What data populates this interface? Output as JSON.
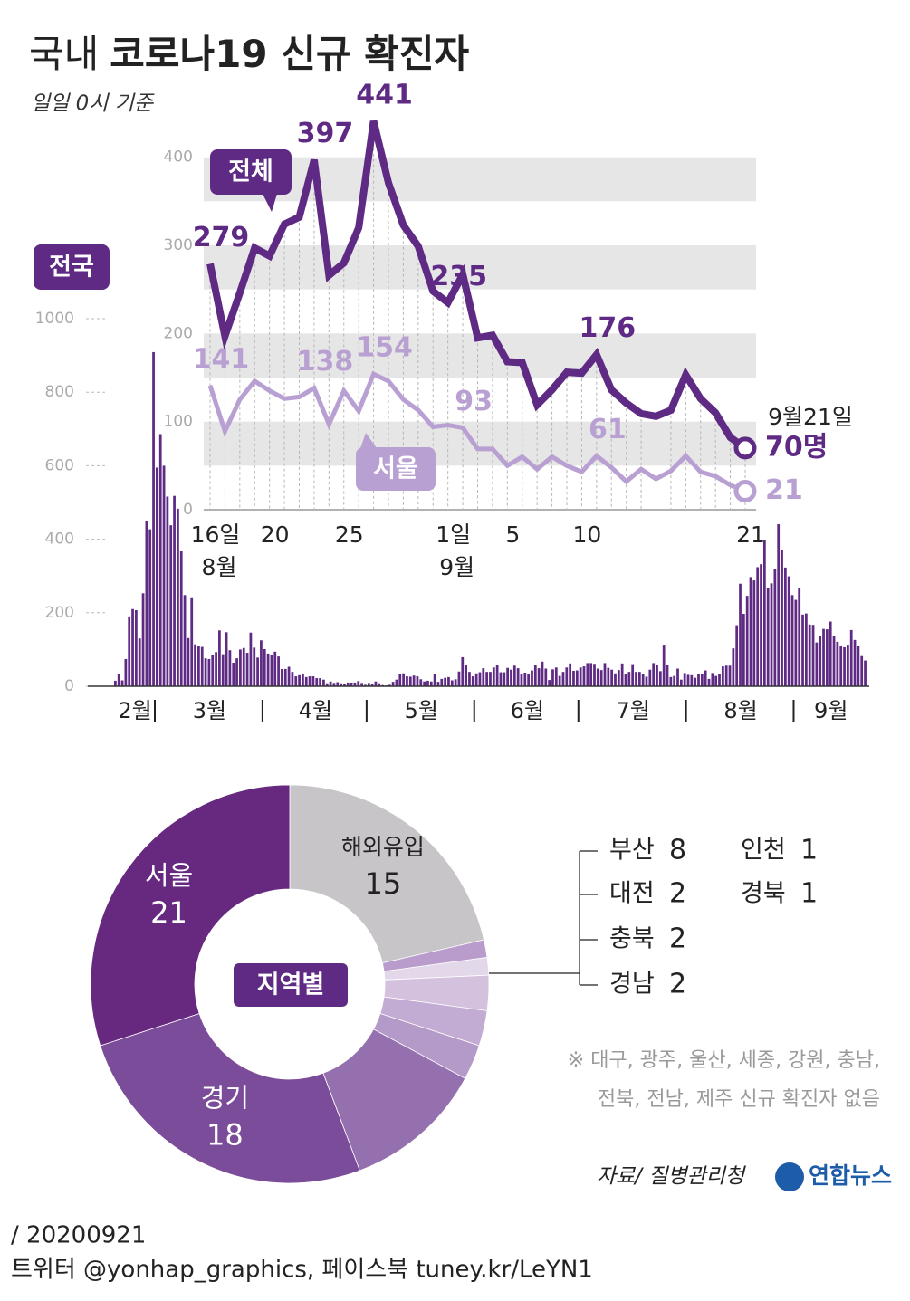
{
  "header": {
    "title_prefix": "국내",
    "title": "코로나19 신규 확진자",
    "subtitle": "일일 0시 기준"
  },
  "chart_data": [
    {
      "type": "bar",
      "name": "전국",
      "color": "#5e2a84",
      "categories": [
        "2월",
        null,
        null,
        null,
        null,
        null,
        null,
        null,
        null,
        null,
        null,
        null,
        "3월",
        null,
        null,
        null,
        null,
        null,
        null,
        null,
        null,
        null,
        null,
        null,
        null,
        null,
        null,
        null,
        null,
        null,
        null,
        null,
        null,
        null,
        null,
        null,
        null,
        null,
        null,
        null,
        null,
        null,
        null,
        "4월",
        null,
        null,
        null,
        null,
        null,
        null,
        null,
        null,
        null,
        null,
        null,
        null,
        null,
        null,
        null,
        null,
        null,
        null,
        null,
        null,
        null,
        null,
        null,
        null,
        null,
        null,
        null,
        null,
        null,
        "5월",
        null,
        null,
        null,
        null,
        null,
        null,
        null,
        null,
        null,
        null,
        null,
        null,
        null,
        null,
        null,
        null,
        null,
        null,
        null,
        null,
        null,
        null,
        null,
        null,
        null,
        null,
        null,
        null,
        null,
        null,
        "6월",
        null,
        null,
        null,
        null,
        null,
        null,
        null,
        null,
        null,
        null,
        null,
        null,
        null,
        null,
        null,
        null,
        null,
        null,
        null,
        null,
        null,
        null,
        null,
        null,
        null,
        null,
        null,
        null,
        null,
        "7월",
        null,
        null,
        null,
        null,
        null,
        null,
        null,
        null,
        null,
        null,
        null,
        null,
        null,
        null,
        null,
        null,
        null,
        null,
        null,
        null,
        null,
        null,
        null,
        null,
        null,
        null,
        null,
        null,
        null,
        null,
        "8월",
        null,
        null,
        null,
        null,
        null,
        null,
        null,
        null,
        null,
        null,
        null,
        null,
        null,
        null,
        null,
        null,
        null,
        null,
        null,
        null,
        null,
        null,
        null,
        null,
        null,
        null,
        null,
        null,
        null,
        null,
        "9월",
        null,
        null,
        null,
        null,
        null,
        null,
        null,
        null,
        null,
        null,
        null,
        null,
        null,
        null,
        null,
        null,
        null,
        null,
        null,
        null
      ],
      "values": [
        15,
        34,
        16,
        74,
        190,
        210,
        207,
        130,
        253,
        449,
        427,
        909,
        595,
        686,
        600,
        516,
        438,
        518,
        483,
        367,
        248,
        131,
        242,
        114,
        110,
        107,
        76,
        74,
        84,
        93,
        152,
        87,
        147,
        98,
        64,
        76,
        100,
        104,
        91,
        146,
        105,
        78,
        125,
        101,
        89,
        86,
        94,
        81,
        47,
        47,
        53,
        39,
        27,
        30,
        32,
        25,
        27,
        27,
        22,
        22,
        18,
        8,
        13,
        9,
        11,
        8,
        6,
        10,
        10,
        10,
        14,
        9,
        4,
        9,
        6,
        13,
        8,
        3,
        2,
        4,
        12,
        18,
        34,
        35,
        27,
        26,
        29,
        27,
        19,
        13,
        15,
        13,
        32,
        12,
        20,
        23,
        25,
        16,
        19,
        40,
        79,
        58,
        39,
        27,
        35,
        38,
        49,
        39,
        39,
        51,
        57,
        38,
        38,
        50,
        45,
        56,
        49,
        34,
        37,
        34,
        43,
        59,
        49,
        67,
        48,
        17,
        46,
        51,
        28,
        39,
        51,
        62,
        42,
        43,
        51,
        54,
        63,
        63,
        61,
        48,
        44,
        63,
        50,
        45,
        35,
        44,
        62,
        33,
        39,
        60,
        39,
        39,
        34,
        26,
        45,
        63,
        59,
        41,
        113,
        58,
        25,
        28,
        48,
        18,
        36,
        31,
        30,
        23,
        34,
        33,
        43,
        20,
        36,
        28,
        34,
        54,
        56,
        56,
        103,
        166,
        279,
        197,
        246,
        297,
        288,
        324,
        332,
        397,
        266,
        280,
        320,
        441,
        371,
        323,
        299,
        248,
        235,
        267,
        195,
        198,
        168,
        167,
        119,
        136,
        156,
        155,
        176,
        136,
        121,
        109,
        106,
        113,
        153,
        126,
        110,
        82,
        70
      ],
      "ylim": [
        0,
        1000
      ],
      "yticks": [
        0,
        200,
        400,
        600,
        800,
        1000
      ]
    },
    {
      "type": "line",
      "categories": [
        "16일",
        null,
        null,
        null,
        "20",
        null,
        null,
        null,
        null,
        "25",
        null,
        null,
        null,
        null,
        null,
        null,
        "1일",
        null,
        null,
        null,
        "5",
        null,
        null,
        null,
        null,
        "10",
        null,
        null,
        null,
        null,
        null,
        null,
        null,
        null,
        null,
        null,
        "21"
      ],
      "month_labels": [
        "8월",
        null,
        null,
        null,
        null,
        null,
        null,
        null,
        null,
        null,
        null,
        null,
        null,
        null,
        null,
        null,
        "9월",
        null,
        null,
        null,
        null,
        null,
        null,
        null,
        null,
        null,
        null,
        null,
        null,
        null,
        null,
        null,
        null,
        null,
        null,
        null,
        null
      ],
      "series": [
        {
          "name": "전체",
          "color": "#5e2a84",
          "values": [
            279,
            197,
            246,
            297,
            288,
            324,
            332,
            397,
            266,
            280,
            320,
            441,
            371,
            323,
            299,
            248,
            235,
            267,
            195,
            198,
            168,
            167,
            119,
            136,
            156,
            155,
            176,
            136,
            121,
            109,
            106,
            113,
            153,
            126,
            110,
            82,
            70
          ],
          "value_labels": [
            "279",
            null,
            null,
            null,
            null,
            null,
            null,
            "397",
            null,
            null,
            null,
            "441",
            null,
            null,
            null,
            null,
            "235",
            null,
            null,
            null,
            null,
            null,
            null,
            null,
            null,
            null,
            "176",
            null,
            null,
            null,
            null,
            null,
            null,
            null,
            null,
            null,
            "70명"
          ]
        },
        {
          "name": "서울",
          "color": "#b9a0d2",
          "values": [
            141,
            89,
            125,
            146,
            135,
            126,
            128,
            138,
            97,
            135,
            112,
            154,
            146,
            125,
            113,
            94,
            96,
            93,
            69,
            69,
            50,
            60,
            46,
            60,
            50,
            43,
            61,
            48,
            32,
            46,
            35,
            44,
            61,
            43,
            38,
            28,
            21
          ],
          "value_labels": [
            "141",
            null,
            null,
            null,
            null,
            null,
            null,
            "138",
            null,
            null,
            null,
            "154",
            null,
            null,
            null,
            null,
            null,
            "93",
            null,
            null,
            null,
            null,
            null,
            null,
            null,
            null,
            "61",
            null,
            null,
            null,
            null,
            null,
            null,
            null,
            null,
            null,
            "21"
          ]
        }
      ],
      "ylim": [
        0,
        450
      ],
      "yticks": [
        0,
        100,
        200,
        300,
        400
      ],
      "grid": "bands",
      "annotation": "9월21일"
    },
    {
      "type": "pie",
      "title": "지역별",
      "categories": [
        "해외유입",
        "경북",
        "인천",
        "경남",
        "충북",
        "대전",
        "부산",
        "경기",
        "서울"
      ],
      "values": [
        15,
        1,
        1,
        2,
        2,
        2,
        8,
        18,
        21
      ],
      "colors": [
        "#c8c5c8",
        "#b99ccb",
        "#e3d8ea",
        "#d3c1de",
        "#c3acd4",
        "#b49ac9",
        "#9570ae",
        "#7b4c99",
        "#66297f"
      ]
    }
  ],
  "note": [
    "※ 대구, 광주, 울산, 세종, 강원, 충남,",
    "전북, 전남, 제주 신규 확진자 없음"
  ],
  "source": "자료/ 질병관리청",
  "logo": "연합뉴스",
  "footer": {
    "date": "/ 20200921",
    "social": "트위터 @yonhap_graphics, 페이스북 tuney.kr/LeYN1"
  }
}
